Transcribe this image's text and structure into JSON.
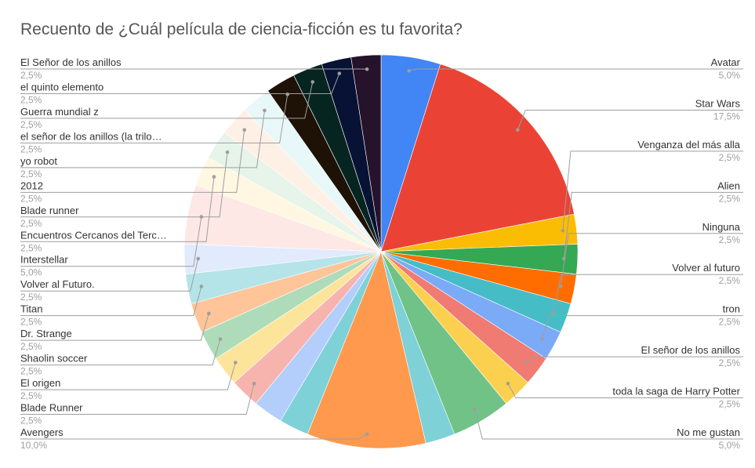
{
  "chart_data": {
    "type": "pie",
    "title": "Recuento de ¿Cuál película de ciencia-ficción es tu favorita?",
    "slices": [
      {
        "label": "Avatar",
        "value": 5.0,
        "value_label": "5,0%",
        "color": "#4285f4"
      },
      {
        "label": "Star Wars",
        "value": 17.5,
        "value_label": "17,5%",
        "color": "#ea4335"
      },
      {
        "label": "Venganza del más alla",
        "value": 2.5,
        "value_label": "2,5%",
        "color": "#fbbc04"
      },
      {
        "label": "Alien",
        "value": 2.5,
        "value_label": "2,5%",
        "color": "#34a853"
      },
      {
        "label": "Ninguna",
        "value": 2.5,
        "value_label": "2,5%",
        "color": "#ff6d01"
      },
      {
        "label": "Volver al futuro",
        "value": 2.5,
        "value_label": "2,5%",
        "color": "#46bdc6"
      },
      {
        "label": "tron",
        "value": 2.5,
        "value_label": "2,5%",
        "color": "#7baaf7"
      },
      {
        "label": "El señor de los anillos",
        "value": 2.5,
        "value_label": "2,5%",
        "color": "#f07b72"
      },
      {
        "label": "toda la saga de Harry Potter",
        "value": 2.5,
        "value_label": "2,5%",
        "color": "#fcd04f"
      },
      {
        "label": "No me gustan",
        "value": 5.0,
        "value_label": "5,0%",
        "color": "#71c287"
      },
      {
        "label": "",
        "value": 2.5,
        "value_label": "",
        "color": "#7ed1d7"
      },
      {
        "label": "Avengers",
        "value": 10.0,
        "value_label": "10,0%",
        "color": "#ff994d"
      },
      {
        "label": "",
        "value": 2.5,
        "value_label": "",
        "color": "#7ed1d7"
      },
      {
        "label": "",
        "value": 2.5,
        "value_label": "",
        "color": "#b3cefb"
      },
      {
        "label": "Blade Runner",
        "value": 2.5,
        "value_label": "2,5%",
        "color": "#f7b4ae"
      },
      {
        "label": "El origen",
        "value": 2.5,
        "value_label": "2,5%",
        "color": "#fde49b"
      },
      {
        "label": "Shaolin soccer",
        "value": 2.5,
        "value_label": "2,5%",
        "color": "#aedcba"
      },
      {
        "label": "Dr. Strange",
        "value": 2.5,
        "value_label": "2,5%",
        "color": "#ffc599"
      },
      {
        "label": "Titan",
        "value": 2.5,
        "value_label": "2,5%",
        "color": "#b5e4e8"
      },
      {
        "label": "Volver al Futuro.",
        "value": 2.5,
        "value_label": "2,5%",
        "color": "#e1ebfd"
      },
      {
        "label": "Interstellar",
        "value": 5.0,
        "value_label": "5,0%",
        "color": "#fde8e6"
      },
      {
        "label": "Encuentros Cercanos del Terc…",
        "value": 2.5,
        "value_label": "2,5%",
        "color": "#fff7e1"
      },
      {
        "label": "Blade runner",
        "value": 2.5,
        "value_label": "2,5%",
        "color": "#e6f4ea"
      },
      {
        "label": "2012",
        "value": 2.5,
        "value_label": "2,5%",
        "color": "#fff0e6"
      },
      {
        "label": "yo robot",
        "value": 2.5,
        "value_label": "2,5%",
        "color": "#e8f7f8"
      },
      {
        "label": "el señor de los anillos (la trilo…",
        "value": 2.5,
        "value_label": "2,5%",
        "color": "#1e1207"
      },
      {
        "label": "Guerra mundial z",
        "value": 2.5,
        "value_label": "2,5%",
        "color": "#062520"
      },
      {
        "label": "el quinto elemento",
        "value": 2.5,
        "value_label": "2,5%",
        "color": "#071234"
      },
      {
        "label": "El Señor de los anillos",
        "value": 2.5,
        "value_label": "2,5%",
        "color": "#26122a"
      }
    ],
    "legend": "none",
    "label_style": "leader lines"
  }
}
